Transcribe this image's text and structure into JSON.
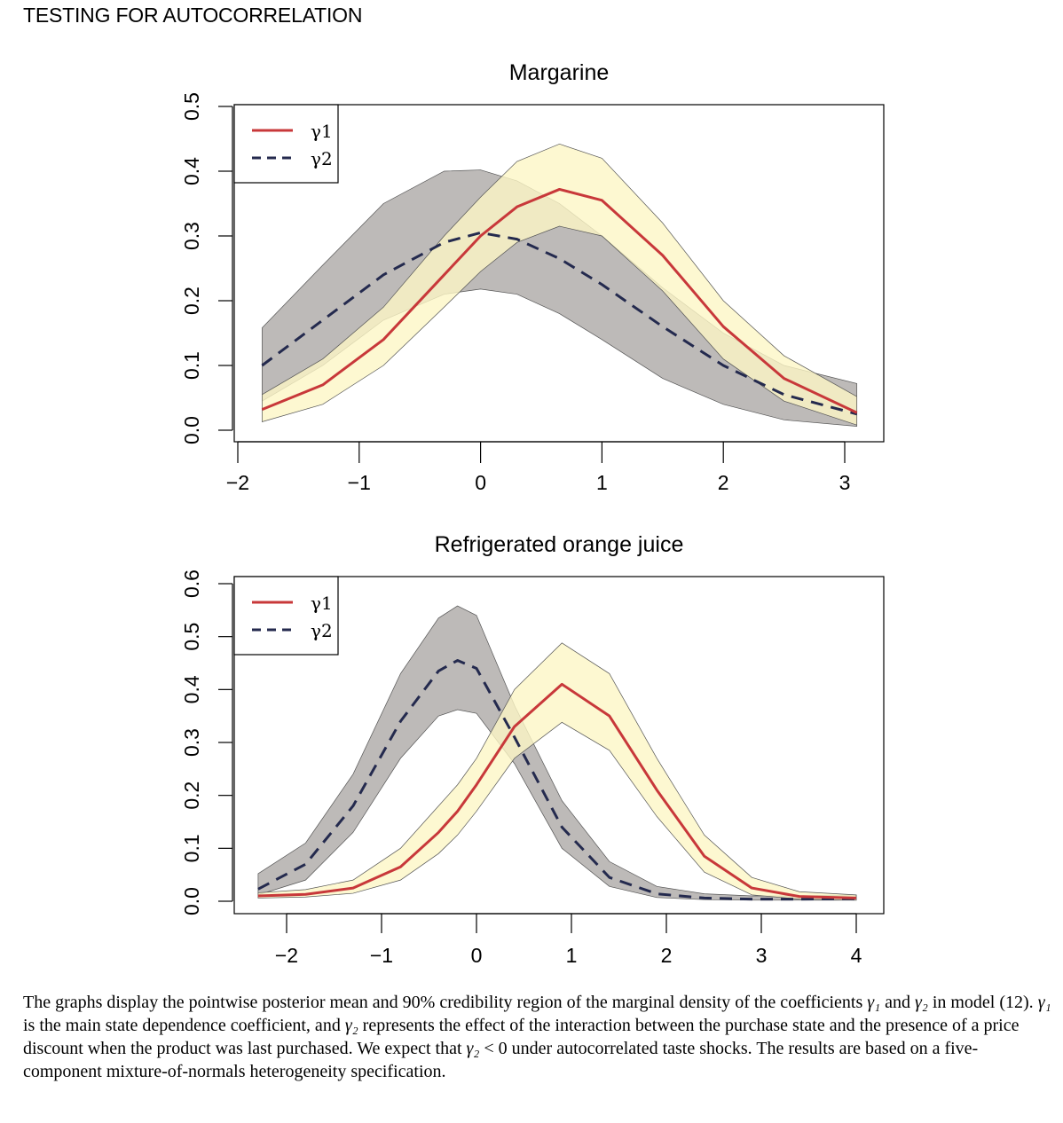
{
  "header": {
    "title": "TESTING FOR AUTOCORRELATION"
  },
  "colors": {
    "gamma1_line": "#c8383a",
    "gamma1_band": "#fcf6c6",
    "gamma2_line": "#242a4e",
    "gamma2_band": "#aaa7a4",
    "axis": "#000000"
  },
  "chart_data": [
    {
      "type": "line",
      "title": "Margarine",
      "xlim": [
        -2,
        3.2
      ],
      "ylim": [
        0,
        0.5
      ],
      "x_ticks": [
        -2,
        -1,
        0,
        1,
        2,
        3
      ],
      "x_tick_labels": [
        "−2",
        "−1",
        "0",
        "1",
        "2",
        "3"
      ],
      "y_ticks": [
        0,
        0.1,
        0.2,
        0.3,
        0.4,
        0.5
      ],
      "y_tick_labels": [
        "0.0",
        "0.1",
        "0.2",
        "0.3",
        "0.4",
        "0.5"
      ],
      "legend": {
        "position": "top-left",
        "entries": [
          "γ1",
          "γ2"
        ]
      },
      "x": [
        -1.8,
        -1.3,
        -0.8,
        -0.3,
        0,
        0.3,
        0.65,
        1.0,
        1.5,
        2.0,
        2.5,
        3.1
      ],
      "series": [
        {
          "name": "γ1",
          "style": "solid",
          "mean": [
            0.032,
            0.07,
            0.14,
            0.24,
            0.3,
            0.345,
            0.372,
            0.355,
            0.27,
            0.16,
            0.08,
            0.027
          ],
          "lower": [
            0.013,
            0.04,
            0.1,
            0.19,
            0.245,
            0.29,
            0.315,
            0.3,
            0.215,
            0.11,
            0.045,
            0.008
          ],
          "upper": [
            0.055,
            0.11,
            0.19,
            0.3,
            0.36,
            0.415,
            0.442,
            0.42,
            0.32,
            0.2,
            0.115,
            0.052
          ]
        },
        {
          "name": "γ2",
          "style": "dashed",
          "mean": [
            0.1,
            0.17,
            0.24,
            0.29,
            0.305,
            0.295,
            0.265,
            0.225,
            0.16,
            0.1,
            0.055,
            0.025
          ],
          "lower": [
            0.045,
            0.1,
            0.17,
            0.21,
            0.218,
            0.21,
            0.18,
            0.14,
            0.08,
            0.04,
            0.016,
            0.006
          ],
          "upper": [
            0.158,
            0.255,
            0.35,
            0.4,
            0.402,
            0.385,
            0.35,
            0.3,
            0.22,
            0.15,
            0.1,
            0.072
          ]
        }
      ]
    },
    {
      "type": "line",
      "title": "Refrigerated orange juice",
      "xlim": [
        -2.5,
        4.05
      ],
      "ylim": [
        0,
        0.6
      ],
      "x_ticks": [
        -2,
        -1,
        0,
        1,
        2,
        3,
        4
      ],
      "x_tick_labels": [
        "−2",
        "−1",
        "0",
        "1",
        "2",
        "3",
        "4"
      ],
      "y_ticks": [
        0,
        0.1,
        0.2,
        0.3,
        0.4,
        0.5,
        0.6
      ],
      "y_tick_labels": [
        "0.0",
        "0.1",
        "0.2",
        "0.3",
        "0.4",
        "0.5",
        "0.6"
      ],
      "legend": {
        "position": "top-left",
        "entries": [
          "γ1",
          "γ2"
        ]
      },
      "x": [
        -2.3,
        -1.8,
        -1.3,
        -0.8,
        -0.4,
        -0.2,
        0,
        0.4,
        0.9,
        1.4,
        1.9,
        2.4,
        2.9,
        3.4,
        4.0
      ],
      "series": [
        {
          "name": "γ1",
          "style": "solid",
          "mean": [
            0.01,
            0.013,
            0.025,
            0.065,
            0.13,
            0.17,
            0.22,
            0.33,
            0.41,
            0.35,
            0.21,
            0.085,
            0.025,
            0.009,
            0.006
          ],
          "lower": [
            0.006,
            0.008,
            0.015,
            0.04,
            0.09,
            0.125,
            0.17,
            0.27,
            0.338,
            0.285,
            0.16,
            0.055,
            0.012,
            0.004,
            0.002
          ],
          "upper": [
            0.016,
            0.022,
            0.04,
            0.1,
            0.18,
            0.22,
            0.27,
            0.4,
            0.488,
            0.43,
            0.27,
            0.125,
            0.045,
            0.018,
            0.012
          ]
        },
        {
          "name": "γ2",
          "style": "dashed",
          "mean": [
            0.023,
            0.07,
            0.18,
            0.34,
            0.435,
            0.455,
            0.44,
            0.31,
            0.14,
            0.045,
            0.014,
            0.006,
            0.004,
            0.004,
            0.005
          ],
          "lower": [
            0.012,
            0.04,
            0.13,
            0.27,
            0.35,
            0.362,
            0.355,
            0.26,
            0.1,
            0.028,
            0.007,
            0.003,
            0.002,
            0.002,
            0.002
          ],
          "upper": [
            0.052,
            0.11,
            0.24,
            0.43,
            0.535,
            0.558,
            0.54,
            0.37,
            0.19,
            0.075,
            0.028,
            0.014,
            0.01,
            0.01,
            0.012
          ]
        }
      ]
    }
  ],
  "caption": {
    "part1": "The graphs display the pointwise posterior mean and 90% credibility region of the marginal density of the coefficients ",
    "g1": "γ₁",
    "part2": " and ",
    "g2": "γ₂",
    "part3": " in model (12). ",
    "g1b": "γ₁",
    "part4": " is the main state dependence coefficient, and ",
    "g2b": "γ₂",
    "part5": " represents the effect of the interaction between the purchase state and the presence of a price discount when the product was last purchased. We expect that ",
    "g2c": "γ₂",
    "part6": " < 0 under autocorrelated taste shocks. The results are based on a five-component mixture-of-normals heterogeneity specification."
  }
}
